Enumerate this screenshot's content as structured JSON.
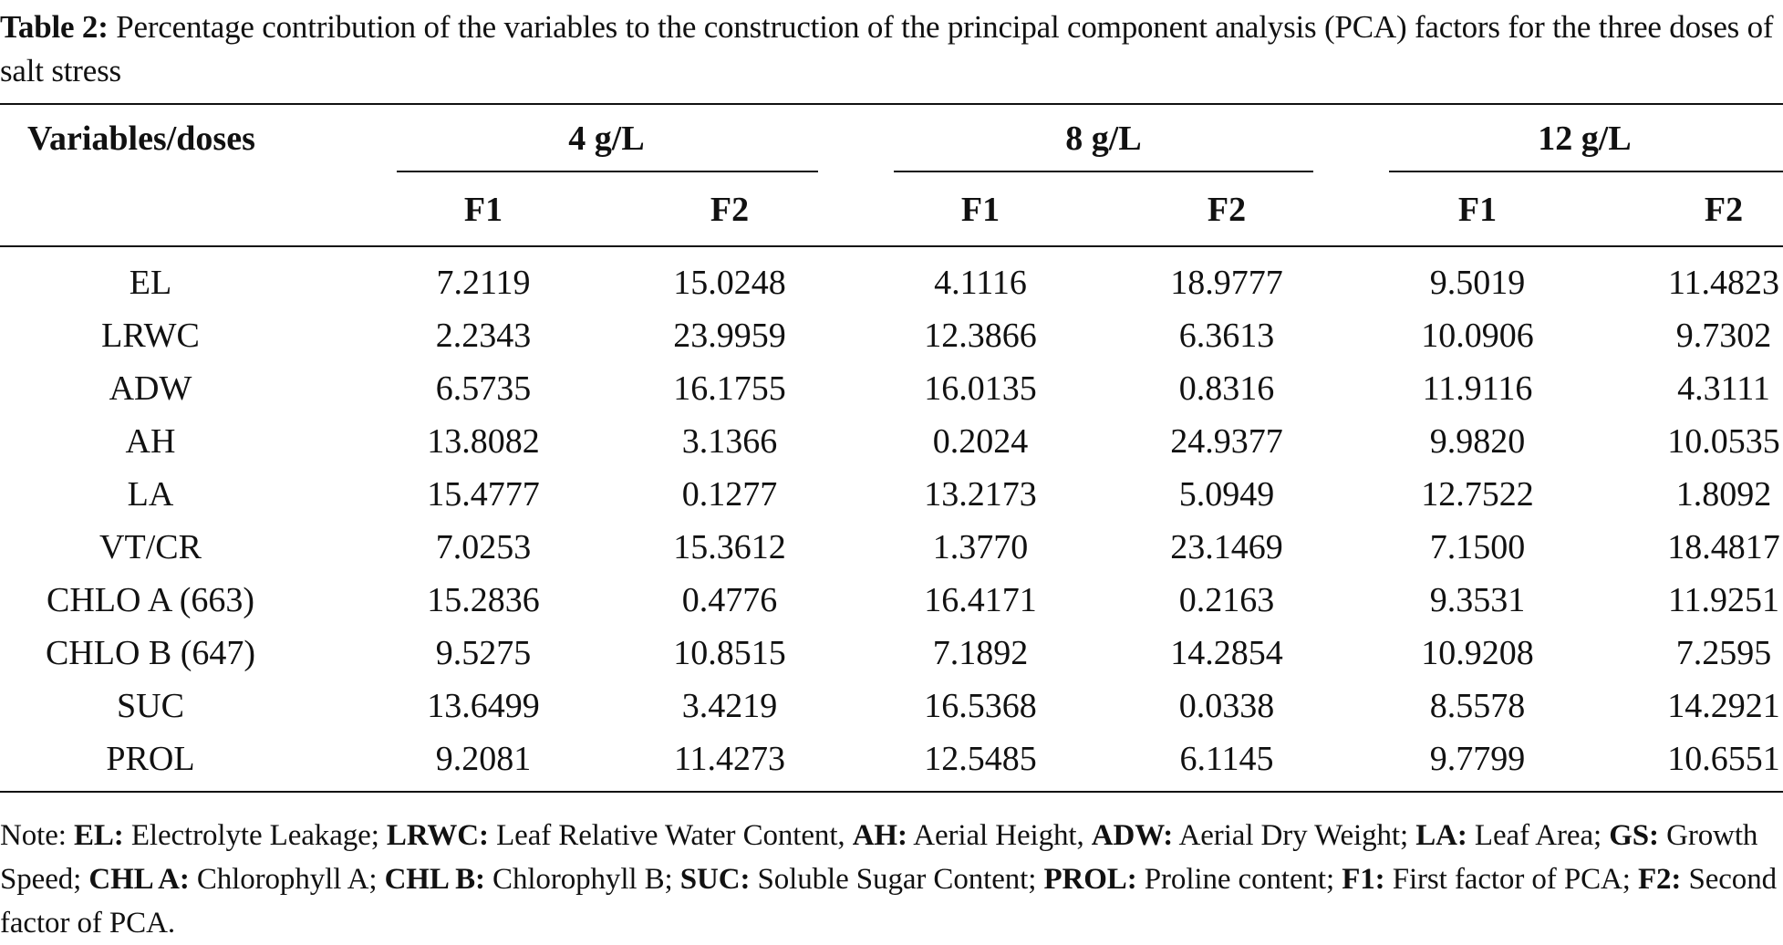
{
  "caption": {
    "label": "Table 2:",
    "text": " Percentage contribution of the variables to the construction of the principal component analysis (PCA) factors for the three doses of salt stress"
  },
  "table": {
    "var_header": "Variables/doses",
    "groups": [
      "4 g/L",
      "8 g/L",
      "12 g/L"
    ],
    "subheaders": [
      "F1",
      "F2",
      "F1",
      "F2",
      "F1",
      "F2"
    ],
    "rows": [
      {
        "var": "EL",
        "values": [
          "7.2119",
          "15.0248",
          "4.1116",
          "18.9777",
          "9.5019",
          "11.4823"
        ]
      },
      {
        "var": "LRWC",
        "values": [
          "2.2343",
          "23.9959",
          "12.3866",
          "6.3613",
          "10.0906",
          "9.7302"
        ]
      },
      {
        "var": "ADW",
        "values": [
          "6.5735",
          "16.1755",
          "16.0135",
          "0.8316",
          "11.9116",
          "4.3111"
        ]
      },
      {
        "var": "AH",
        "values": [
          "13.8082",
          "3.1366",
          "0.2024",
          "24.9377",
          "9.9820",
          "10.0535"
        ]
      },
      {
        "var": "LA",
        "values": [
          "15.4777",
          "0.1277",
          "13.2173",
          "5.0949",
          "12.7522",
          "1.8092"
        ]
      },
      {
        "var": "VT/CR",
        "values": [
          "7.0253",
          "15.3612",
          "1.3770",
          "23.1469",
          "7.1500",
          "18.4817"
        ]
      },
      {
        "var": "CHLO A (663)",
        "values": [
          "15.2836",
          "0.4776",
          "16.4171",
          "0.2163",
          "9.3531",
          "11.9251"
        ]
      },
      {
        "var": "CHLO B (647)",
        "values": [
          "9.5275",
          "10.8515",
          "7.1892",
          "14.2854",
          "10.9208",
          "7.2595"
        ]
      },
      {
        "var": "SUC",
        "values": [
          "13.6499",
          "3.4219",
          "16.5368",
          "0.0338",
          "8.5578",
          "14.2921"
        ]
      },
      {
        "var": "PROL",
        "values": [
          "9.2081",
          "11.4273",
          "12.5485",
          "6.1145",
          "9.7799",
          "10.6551"
        ]
      }
    ]
  },
  "note": {
    "prefix": "Note: ",
    "items": [
      {
        "abbr": "EL:",
        "def": " Electrolyte Leakage; "
      },
      {
        "abbr": "LRWC:",
        "def": " Leaf Relative Water Content, "
      },
      {
        "abbr": "AH:",
        "def": " Aerial Height, "
      },
      {
        "abbr": "ADW:",
        "def": " Aerial Dry Weight; "
      },
      {
        "abbr": "LA:",
        "def": " Leaf Area; "
      },
      {
        "abbr": "GS:",
        "def": " Growth Speed; "
      },
      {
        "abbr": "CHL A:",
        "def": " Chlorophyll A; "
      },
      {
        "abbr": "CHL B:",
        "def": " Chlorophyll B; "
      },
      {
        "abbr": "SUC:",
        "def": " Soluble Sugar Content; "
      },
      {
        "abbr": "PROL:",
        "def": " Proline content; "
      },
      {
        "abbr": "F1:",
        "def": " First factor of PCA; "
      },
      {
        "abbr": "F2:",
        "def": " Second factor of PCA."
      }
    ]
  }
}
